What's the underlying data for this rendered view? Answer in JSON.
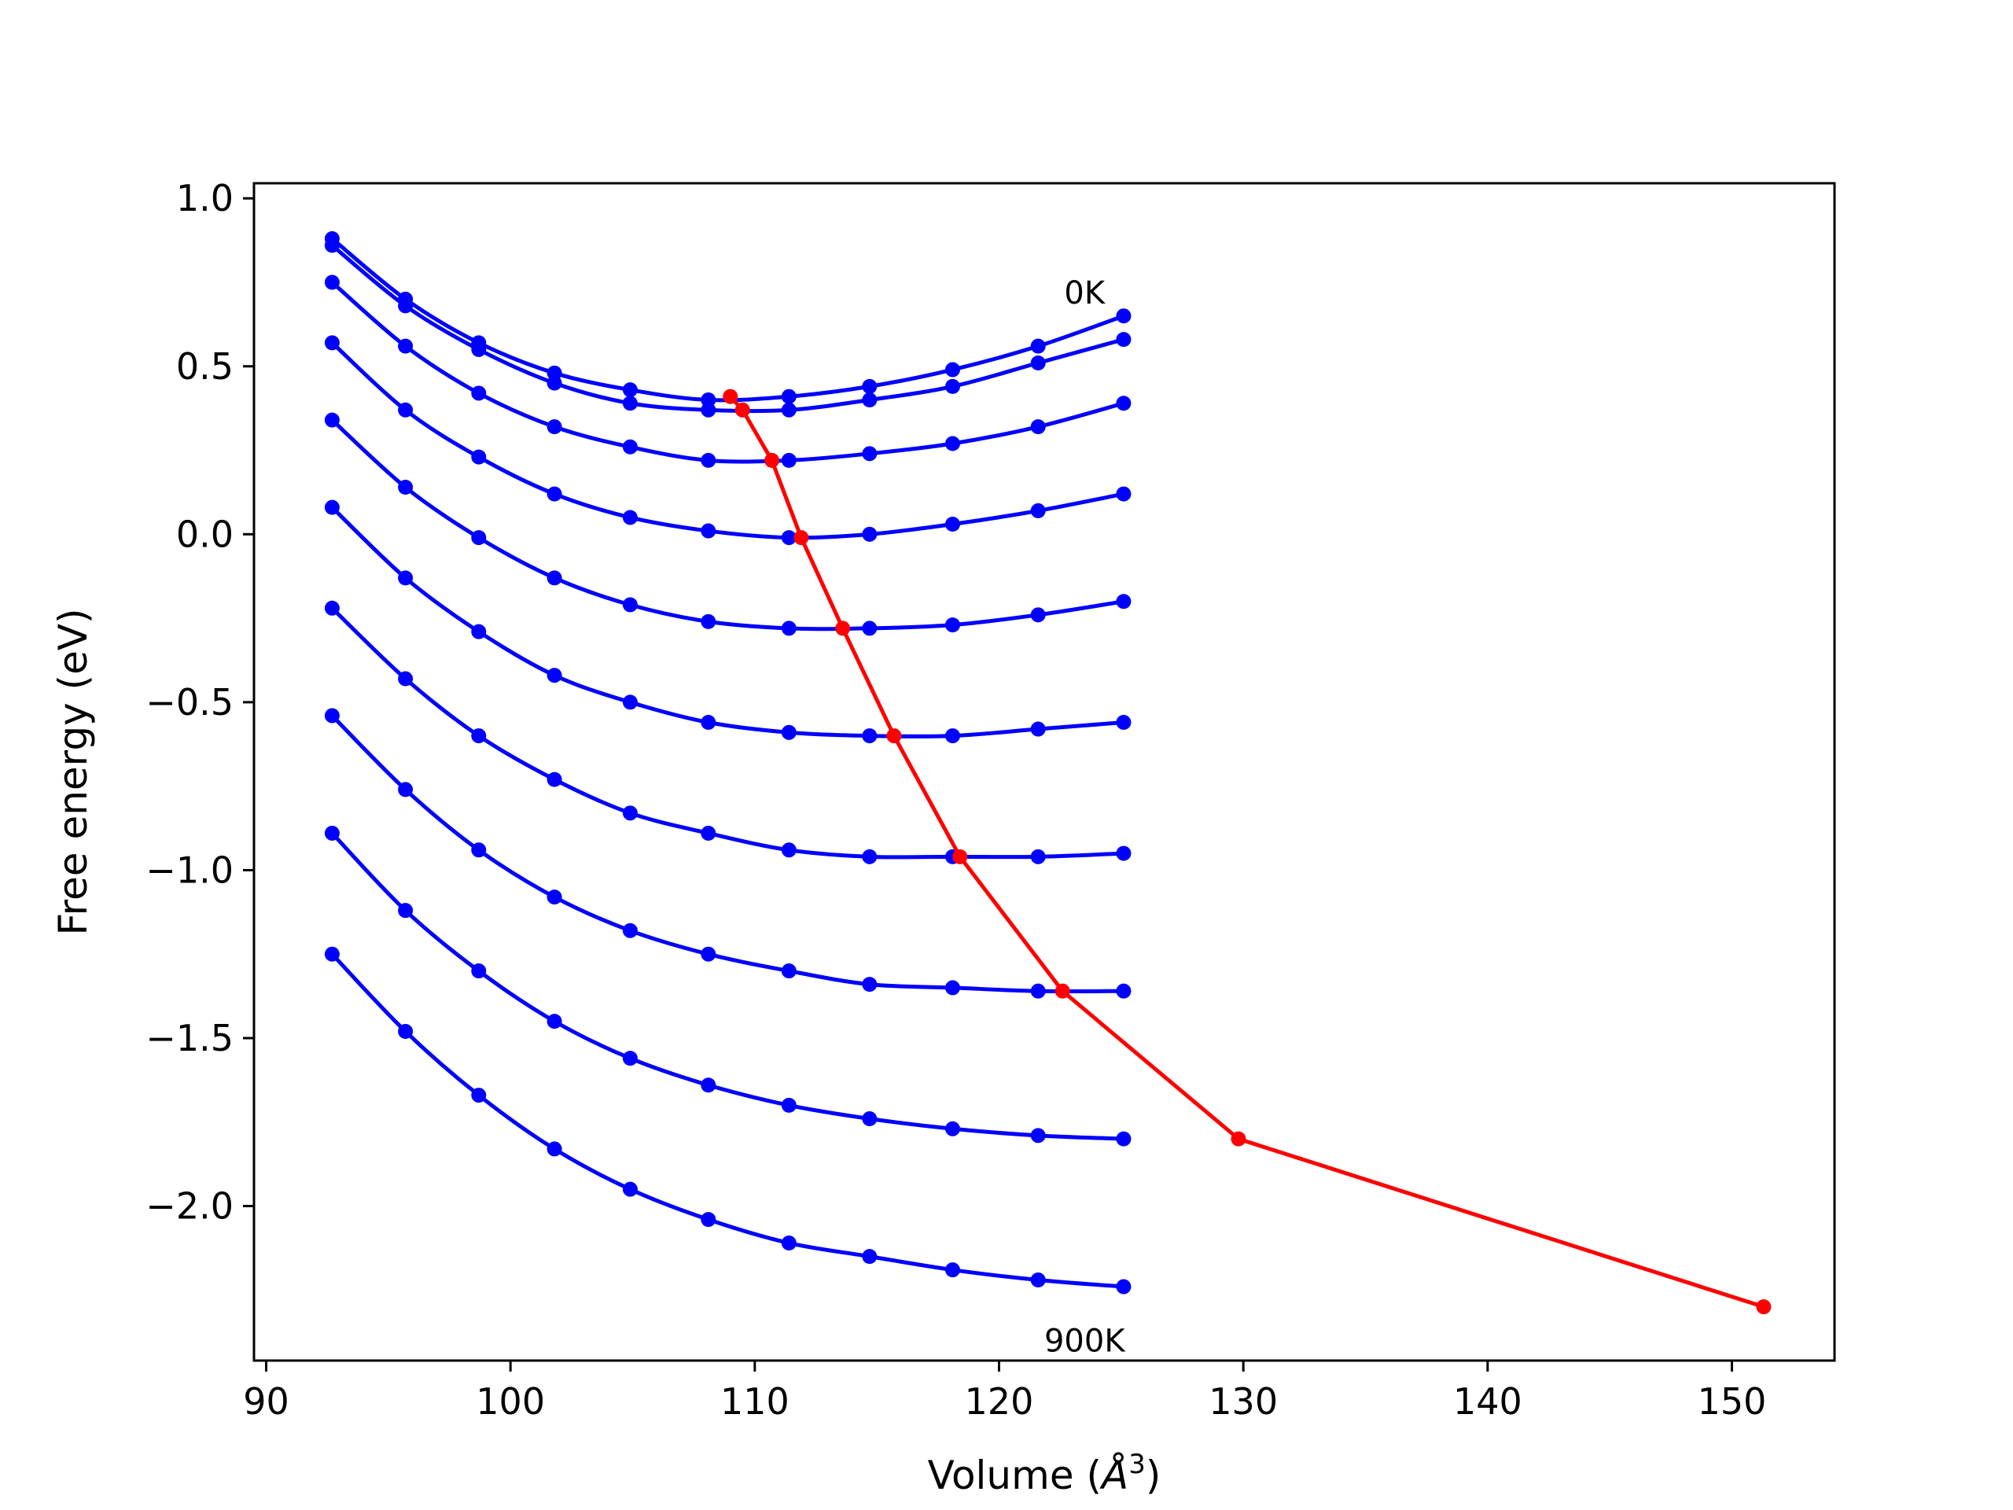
{
  "chart_data": {
    "type": "line",
    "title": "",
    "xlabel": "Volume (",
    "xlabel_unit": "Å",
    "xlabel_exp": "3",
    "xlabel_close": ")",
    "ylabel": "Free energy (eV)",
    "xlim": [
      89.5,
      154.2
    ],
    "ylim": [
      -2.46,
      1.045
    ],
    "xticks": [
      90,
      100,
      110,
      120,
      130,
      140,
      150
    ],
    "yticks": [
      1.0,
      0.5,
      0.0,
      -0.5,
      -1.0,
      -1.5,
      -2.0
    ],
    "ytick_labels": [
      "1.0",
      "0.5",
      "0.0",
      "−0.5",
      "−1.0",
      "−1.5",
      "−2.0"
    ],
    "grid": false,
    "annotations": [
      {
        "text": "0K",
        "x": 123.5,
        "y": 0.72
      },
      {
        "text": "900K",
        "x": 123.5,
        "y": -2.4
      }
    ],
    "x": [
      92.7,
      95.7,
      98.7,
      101.8,
      104.9,
      108.1,
      111.4,
      114.7,
      118.1,
      121.6,
      125.1
    ],
    "series": [
      {
        "values": [
          0.88,
          0.7,
          0.57,
          0.48,
          0.43,
          0.4,
          0.41,
          0.44,
          0.49,
          0.56,
          0.65
        ]
      },
      {
        "values": [
          0.86,
          0.68,
          0.55,
          0.45,
          0.39,
          0.37,
          0.37,
          0.4,
          0.44,
          0.51,
          0.58
        ]
      },
      {
        "values": [
          0.75,
          0.56,
          0.42,
          0.32,
          0.26,
          0.22,
          0.22,
          0.24,
          0.27,
          0.32,
          0.39
        ]
      },
      {
        "values": [
          0.57,
          0.37,
          0.23,
          0.12,
          0.05,
          0.01,
          -0.01,
          0.0,
          0.03,
          0.07,
          0.12
        ]
      },
      {
        "values": [
          0.34,
          0.14,
          -0.01,
          -0.13,
          -0.21,
          -0.26,
          -0.28,
          -0.28,
          -0.27,
          -0.24,
          -0.2
        ]
      },
      {
        "values": [
          0.08,
          -0.13,
          -0.29,
          -0.42,
          -0.5,
          -0.56,
          -0.59,
          -0.6,
          -0.6,
          -0.58,
          -0.56
        ]
      },
      {
        "values": [
          -0.22,
          -0.43,
          -0.6,
          -0.73,
          -0.83,
          -0.89,
          -0.94,
          -0.96,
          -0.96,
          -0.96,
          -0.95
        ]
      },
      {
        "values": [
          -0.54,
          -0.76,
          -0.94,
          -1.08,
          -1.18,
          -1.25,
          -1.3,
          -1.34,
          -1.35,
          -1.36,
          -1.36
        ]
      },
      {
        "values": [
          -0.89,
          -1.12,
          -1.3,
          -1.45,
          -1.56,
          -1.64,
          -1.7,
          -1.74,
          -1.77,
          -1.79,
          -1.8
        ]
      },
      {
        "values": [
          -1.25,
          -1.48,
          -1.67,
          -1.83,
          -1.95,
          -2.04,
          -2.11,
          -2.15,
          -2.19,
          -2.22,
          -2.24
        ]
      }
    ],
    "minimum_curve": {
      "x": [
        109.0,
        109.5,
        110.7,
        111.9,
        113.6,
        115.7,
        118.4,
        122.6,
        129.8,
        151.3
      ],
      "y": [
        0.41,
        0.37,
        0.22,
        -0.01,
        -0.28,
        -0.6,
        -0.96,
        -1.36,
        -1.8,
        -2.3
      ]
    },
    "colors": {
      "curves": "#0000ff",
      "minimum": "#ff0000"
    }
  }
}
